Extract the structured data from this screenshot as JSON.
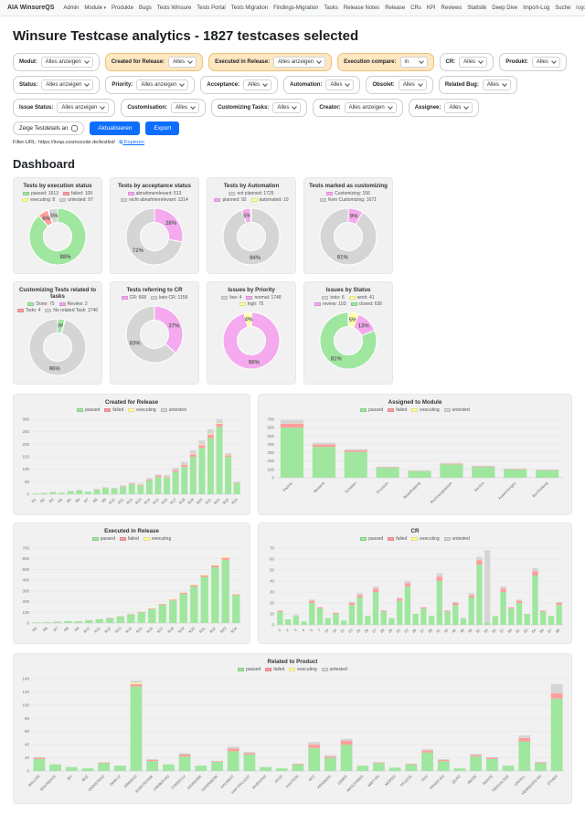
{
  "palette": {
    "green": "#9fe69f",
    "red": "#ff9d9d",
    "yellow": "#ffff9e",
    "gray": "#d5d5d5",
    "pink": "#f5a9ef",
    "accent_blue": "#0d6efd"
  },
  "navbar": {
    "brand": "AIA WinsureQS",
    "items": [
      {
        "label": "Admin"
      },
      {
        "label": "Module",
        "caret": true
      },
      {
        "label": "Produkte"
      },
      {
        "label": "Bugs"
      },
      {
        "label": "Tests Winsure"
      },
      {
        "label": "Tests Portal"
      },
      {
        "label": "Tests Migration"
      },
      {
        "label": "Findings-Migration"
      },
      {
        "label": "Tasks"
      },
      {
        "label": "Release Notes"
      },
      {
        "label": "Release"
      },
      {
        "label": "CRs"
      },
      {
        "label": "KPI"
      },
      {
        "label": "Reviews"
      },
      {
        "label": "Statistik"
      },
      {
        "label": "Deep Dive"
      },
      {
        "label": "Import-Log"
      },
      {
        "label": "Suche"
      }
    ],
    "logout": "logout"
  },
  "title": "Winsure Testcase analytics - 1827 testcases selected",
  "filters": {
    "rows": [
      [
        {
          "label": "Modul:",
          "value": "Alles anzeigen",
          "highlight": false
        },
        {
          "label": "Created for Release:",
          "value": "Alles",
          "highlight": true
        },
        {
          "label": "Executed in Release:",
          "value": "Alles anzeigen",
          "highlight": true
        },
        {
          "label": "Execution compare:",
          "value": "in",
          "highlight": true
        },
        {
          "label": "CR:",
          "value": "Alles",
          "highlight": false
        },
        {
          "label": "Produkt:",
          "value": "Alles",
          "highlight": false
        }
      ],
      [
        {
          "label": "Status:",
          "value": "Alles anzeigen",
          "highlight": false
        },
        {
          "label": "Priority:",
          "value": "Alles anzeigen",
          "highlight": false
        },
        {
          "label": "Acceptance:",
          "value": "Alles",
          "highlight": false
        },
        {
          "label": "Automation:",
          "value": "Alles",
          "highlight": false
        },
        {
          "label": "Obsolet:",
          "value": "Alles",
          "highlight": false
        },
        {
          "label": "Related Bug:",
          "value": "Alles",
          "highlight": false
        }
      ],
      [
        {
          "label": "Issue Status:",
          "value": "Alles anzeigen",
          "highlight": false
        },
        {
          "label": "Customisation:",
          "value": "Alles",
          "highlight": false
        },
        {
          "label": "Customizing Tasks:",
          "value": "Alles",
          "highlight": false
        },
        {
          "label": "Creator:",
          "value": "Alles anzeigen",
          "highlight": false
        },
        {
          "label": "Assignee:",
          "value": "Alles",
          "highlight": false
        }
      ]
    ],
    "checkbox_label": "Zeige Testdetails an",
    "refresh_button": "Aktualisieren",
    "export_button": "Export",
    "url_label": "Filter-URL:",
    "url": "https://iivqa.cosmocode.de/testlist/",
    "copy_link": "Kopieren"
  },
  "dashboard_title": "Dashboard",
  "chart_data": [
    {
      "id": "exec-status",
      "type": "pie",
      "title": "Tests by execution status",
      "slices": [
        {
          "label": "passed",
          "value": 1613,
          "color": "green"
        },
        {
          "label": "failed",
          "value": 109,
          "color": "red"
        },
        {
          "label": "executing",
          "value": 8,
          "color": "yellow"
        },
        {
          "label": "untested",
          "value": 97,
          "color": "gray"
        }
      ]
    },
    {
      "id": "acceptance",
      "type": "pie",
      "title": "Tests by acceptance status",
      "slices": [
        {
          "label": "abnahmerelevant",
          "value": 513,
          "color": "pink"
        },
        {
          "label": "nicht abnahmerelevant",
          "value": 1314,
          "color": "gray"
        }
      ]
    },
    {
      "id": "automation",
      "type": "pie",
      "title": "Tests by Automation",
      "slices": [
        {
          "label": "not planned",
          "value": 1725,
          "color": "gray"
        },
        {
          "label": "planned",
          "value": 92,
          "color": "pink"
        },
        {
          "label": "automated",
          "value": 10,
          "color": "yellow"
        }
      ]
    },
    {
      "id": "customizing",
      "type": "pie",
      "title": "Tests marked as customizing",
      "slices": [
        {
          "label": "Customizing",
          "value": 156,
          "color": "pink"
        },
        {
          "label": "Kein Customizing",
          "value": 1671,
          "color": "gray"
        }
      ]
    },
    {
      "id": "tasks",
      "type": "pie",
      "title": "Customizing Tests related to tasks",
      "slices": [
        {
          "label": "Done",
          "value": 75,
          "color": "green"
        },
        {
          "label": "Review",
          "value": 2,
          "color": "pink"
        },
        {
          "label": "Todo",
          "value": 4,
          "color": "red"
        },
        {
          "label": "No related Task",
          "value": 1746,
          "color": "gray"
        }
      ]
    },
    {
      "id": "cr-ref",
      "type": "pie",
      "title": "Tests referring to CR",
      "slices": [
        {
          "label": "CR",
          "value": 668,
          "color": "pink"
        },
        {
          "label": "kein CR",
          "value": 1159,
          "color": "gray"
        }
      ]
    },
    {
      "id": "priority",
      "type": "pie",
      "title": "Issues by Priority",
      "slices": [
        {
          "label": "low",
          "value": 4,
          "color": "gray"
        },
        {
          "label": "normal",
          "value": 1748,
          "color": "pink"
        },
        {
          "label": "high",
          "value": 75,
          "color": "yellow"
        }
      ]
    },
    {
      "id": "status",
      "type": "pie",
      "title": "Issues by Status",
      "slices": [
        {
          "label": "todo",
          "value": 6,
          "color": "gray"
        },
        {
          "label": "work",
          "value": 41,
          "color": "yellow"
        },
        {
          "label": "review",
          "value": 103,
          "color": "pink"
        },
        {
          "label": "closed",
          "value": 636,
          "color": "green"
        }
      ]
    },
    {
      "id": "created-release",
      "type": "bar",
      "title": "Created for Release",
      "slot": "left",
      "ylim": [
        0,
        300
      ],
      "ystep": 50,
      "categories": [
        "R1",
        "R2",
        "R3",
        "R4",
        "R5",
        "R6",
        "R7",
        "R8",
        "R9",
        "R10",
        "R11",
        "R12",
        "R13",
        "R14",
        "R15",
        "R16",
        "R17",
        "R18",
        "R19",
        "R20",
        "R21",
        "R22",
        "R23",
        "R24"
      ],
      "series": [
        {
          "name": "passed",
          "color": "green",
          "values": [
            3,
            5,
            8,
            6,
            12,
            15,
            10,
            18,
            25,
            22,
            30,
            40,
            35,
            55,
            70,
            65,
            90,
            110,
            150,
            185,
            225,
            270,
            150,
            45
          ]
        },
        {
          "name": "failed",
          "color": "red",
          "values": [
            0,
            0,
            0,
            0,
            1,
            0,
            0,
            2,
            0,
            1,
            2,
            3,
            2,
            4,
            5,
            3,
            6,
            8,
            10,
            12,
            14,
            12,
            6,
            2
          ]
        },
        {
          "name": "executing",
          "color": "yellow",
          "values": [
            0,
            0,
            0,
            0,
            0,
            0,
            0,
            0,
            0,
            0,
            0,
            0,
            1,
            0,
            0,
            1,
            0,
            0,
            2,
            2,
            3,
            2,
            1,
            0
          ]
        },
        {
          "name": "untested",
          "color": "gray",
          "values": [
            0,
            0,
            1,
            0,
            0,
            2,
            1,
            0,
            3,
            2,
            4,
            3,
            5,
            6,
            4,
            8,
            10,
            12,
            14,
            16,
            18,
            16,
            8,
            3
          ]
        }
      ]
    },
    {
      "id": "assigned-module",
      "type": "bar",
      "title": "Assigned to Module",
      "slot": "right",
      "ylim": [
        0,
        700
      ],
      "ystep": 100,
      "categories": [
        "Partner",
        "Bestand",
        "Schaden",
        "Provision",
        "Beauftragung",
        "Rechnungswesen",
        "Service",
        "Auswertungen",
        "Buchhaltung"
      ],
      "series": [
        {
          "name": "passed",
          "color": "green",
          "values": [
            600,
            370,
            310,
            120,
            80,
            160,
            130,
            100,
            90
          ]
        },
        {
          "name": "failed",
          "color": "red",
          "values": [
            48,
            28,
            18,
            5,
            3,
            8,
            6,
            4,
            3
          ]
        },
        {
          "name": "executing",
          "color": "yellow",
          "values": [
            2,
            1,
            0,
            0,
            0,
            1,
            0,
            0,
            0
          ]
        },
        {
          "name": "untested",
          "color": "gray",
          "values": [
            42,
            20,
            14,
            8,
            5,
            10,
            8,
            6,
            5
          ]
        }
      ]
    },
    {
      "id": "executed-release",
      "type": "bar",
      "title": "Executed in Release",
      "slot": "left",
      "ylim": [
        0,
        700
      ],
      "ystep": 100,
      "categories": [
        "R5",
        "R6",
        "R7",
        "R8",
        "R9",
        "R10",
        "R11",
        "R12",
        "R13",
        "R14",
        "R15",
        "R16",
        "R17",
        "R18",
        "R19",
        "R20",
        "R21",
        "R22",
        "R23",
        "R24"
      ],
      "series": [
        {
          "name": "passed",
          "color": "green",
          "values": [
            5,
            8,
            12,
            18,
            15,
            25,
            35,
            45,
            60,
            80,
            100,
            130,
            170,
            210,
            270,
            340,
            430,
            520,
            590,
            260
          ]
        },
        {
          "name": "failed",
          "color": "red",
          "values": [
            0,
            0,
            1,
            0,
            1,
            2,
            2,
            3,
            3,
            4,
            5,
            6,
            8,
            10,
            12,
            14,
            16,
            18,
            20,
            8
          ]
        },
        {
          "name": "executing",
          "color": "yellow",
          "values": [
            0,
            0,
            0,
            0,
            0,
            0,
            1,
            0,
            1,
            1,
            1,
            2,
            2,
            3,
            3,
            4,
            5,
            6,
            8,
            4
          ]
        }
      ]
    },
    {
      "id": "cr-bar",
      "type": "bar",
      "title": "CR",
      "slot": "right",
      "ylim": [
        0,
        70
      ],
      "ystep": 10,
      "categories": [
        "0",
        "2",
        "3",
        "4",
        "5",
        "7",
        "14",
        "16",
        "21",
        "23",
        "25",
        "26",
        "27",
        "28",
        "29",
        "30",
        "33",
        "36",
        "37",
        "38",
        "41",
        "43",
        "45",
        "48",
        "49",
        "52",
        "54",
        "55",
        "57",
        "59",
        "61",
        "63",
        "64",
        "66",
        "67",
        "68"
      ],
      "series": [
        {
          "name": "passed",
          "color": "green",
          "values": [
            12,
            5,
            8,
            3,
            20,
            15,
            6,
            10,
            4,
            18,
            25,
            8,
            30,
            12,
            6,
            22,
            35,
            10,
            15,
            8,
            40,
            12,
            18,
            6,
            25,
            55,
            2,
            8,
            30,
            15,
            20,
            10,
            45,
            12,
            8,
            18
          ]
        },
        {
          "name": "failed",
          "color": "red",
          "values": [
            1,
            0,
            0,
            0,
            2,
            1,
            0,
            1,
            0,
            2,
            2,
            0,
            3,
            1,
            0,
            2,
            3,
            0,
            1,
            0,
            4,
            1,
            2,
            0,
            2,
            4,
            0,
            0,
            3,
            1,
            2,
            0,
            4,
            1,
            0,
            2
          ]
        },
        {
          "name": "executing",
          "color": "yellow",
          "values": [
            0,
            0,
            0,
            0,
            0,
            0,
            0,
            0,
            0,
            0,
            0,
            0,
            0,
            0,
            0,
            0,
            0,
            0,
            0,
            0,
            0,
            0,
            0,
            0,
            0,
            0,
            0,
            0,
            0,
            0,
            0,
            0,
            0,
            0,
            0,
            0
          ]
        },
        {
          "name": "untested",
          "color": "gray",
          "values": [
            0,
            0,
            1,
            0,
            1,
            0,
            0,
            0,
            0,
            1,
            2,
            0,
            2,
            0,
            0,
            1,
            2,
            0,
            0,
            0,
            3,
            0,
            1,
            0,
            2,
            3,
            66,
            0,
            2,
            0,
            1,
            0,
            3,
            0,
            0,
            1
          ]
        }
      ]
    },
    {
      "id": "related-product",
      "type": "bar",
      "title": "Related to Product",
      "slot": "wide",
      "ylim": [
        0,
        140
      ],
      "ystep": 20,
      "categories": [
        "BALLON",
        "BAV-RENTE",
        "BU",
        "BUZ",
        "DIENSTRAD",
        "DKM-LV",
        "DREIRAD",
        "ELEKTRONIK",
        "FIRMEN-RS",
        "FONDS-LV",
        "GEWERBE",
        "HANDWERK",
        "HAUSRAT",
        "HAFTPFLICHT",
        "INVENTAR",
        "JAGD",
        "KAUTION",
        "KFZ",
        "KRANKEN",
        "LEBEN",
        "MASCHINEN",
        "MIET-RS",
        "MOPED",
        "PFLEGE",
        "PHV",
        "PRIVAT-RS",
        "QUAD",
        "REISE",
        "RENTE",
        "TIERHALTER",
        "UNFALL",
        "VERKEHRS-RS",
        "OTHER"
      ],
      "series": [
        {
          "name": "passed",
          "color": "green",
          "values": [
            18,
            10,
            6,
            4,
            12,
            8,
            128,
            15,
            10,
            22,
            8,
            14,
            30,
            25,
            6,
            4,
            10,
            35,
            20,
            40,
            8,
            12,
            5,
            10,
            28,
            15,
            4,
            22,
            18,
            8,
            45,
            12,
            110
          ]
        },
        {
          "name": "failed",
          "color": "red",
          "values": [
            2,
            0,
            0,
            0,
            1,
            0,
            4,
            2,
            0,
            3,
            0,
            1,
            4,
            2,
            0,
            0,
            1,
            5,
            2,
            6,
            0,
            1,
            0,
            1,
            3,
            2,
            0,
            2,
            2,
            0,
            5,
            1,
            8
          ]
        },
        {
          "name": "executing",
          "color": "yellow",
          "values": [
            0,
            0,
            0,
            0,
            0,
            0,
            2,
            0,
            0,
            0,
            0,
            0,
            0,
            0,
            0,
            0,
            0,
            0,
            0,
            0,
            0,
            0,
            0,
            0,
            0,
            0,
            0,
            0,
            0,
            0,
            0,
            0,
            0
          ]
        },
        {
          "name": "untested",
          "color": "gray",
          "values": [
            1,
            0,
            0,
            0,
            0,
            0,
            3,
            1,
            0,
            2,
            0,
            0,
            3,
            2,
            0,
            0,
            0,
            4,
            2,
            3,
            0,
            0,
            0,
            0,
            2,
            1,
            0,
            2,
            1,
            0,
            4,
            1,
            14
          ]
        }
      ]
    }
  ]
}
